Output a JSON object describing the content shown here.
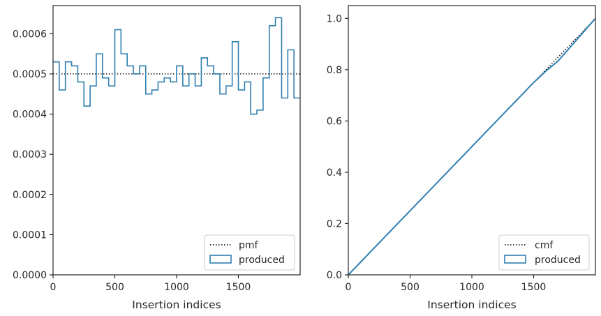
{
  "chart_data": [
    {
      "type": "step",
      "xlabel": "Insertion indices",
      "ylabel": "",
      "xlim": [
        0,
        2000
      ],
      "ylim": [
        0,
        0.00067
      ],
      "xticks": [
        0,
        500,
        1000,
        1500
      ],
      "xtick_labels": [
        "0",
        "500",
        "1000",
        "1500"
      ],
      "yticks": [
        0,
        0.0001,
        0.0002,
        0.0003,
        0.0004,
        0.0005,
        0.0006
      ],
      "ytick_labels": [
        "0.0000",
        "0.0001",
        "0.0002",
        "0.0003",
        "0.0004",
        "0.0005",
        "0.0006"
      ],
      "grid": false,
      "legend_position": "lower-right",
      "reference_line": {
        "name": "pmf",
        "style": "dotted",
        "color": "#000000",
        "value": 0.0005
      },
      "series": [
        {
          "name": "produced",
          "color": "#2f7fb0",
          "bin_width": 50,
          "values": [
            0.00053,
            0.00046,
            0.00053,
            0.00052,
            0.00048,
            0.00042,
            0.00047,
            0.00055,
            0.00049,
            0.00047,
            0.00061,
            0.00055,
            0.00052,
            0.0005,
            0.00052,
            0.00045,
            0.00046,
            0.00048,
            0.00049,
            0.00048,
            0.00052,
            0.00047,
            0.0005,
            0.00047,
            0.00054,
            0.00052,
            0.0005,
            0.00045,
            0.00047,
            0.00058,
            0.00046,
            0.00048,
            0.0004,
            0.00041,
            0.00049,
            0.00062,
            0.00064,
            0.00044,
            0.00056,
            0.00044
          ]
        }
      ]
    },
    {
      "type": "line",
      "xlabel": "Insertion indices",
      "ylabel": "",
      "xlim": [
        0,
        2000
      ],
      "ylim": [
        0,
        1.05
      ],
      "xticks": [
        0,
        500,
        1000,
        1500
      ],
      "xtick_labels": [
        "0",
        "500",
        "1000",
        "1500"
      ],
      "yticks": [
        0,
        0.2,
        0.4,
        0.6,
        0.8,
        1.0
      ],
      "ytick_labels": [
        "0.0",
        "0.2",
        "0.4",
        "0.6",
        "0.8",
        "1.0"
      ],
      "grid": false,
      "legend_position": "lower-right",
      "reference_line": {
        "name": "cmf",
        "style": "dotted",
        "color": "#000000",
        "x": [
          0,
          2000
        ],
        "y": [
          0,
          1
        ]
      },
      "series": [
        {
          "name": "produced",
          "color": "#2f7fb0",
          "x": [
            0,
            100,
            200,
            300,
            400,
            500,
            600,
            700,
            800,
            900,
            1000,
            1100,
            1200,
            1300,
            1400,
            1500,
            1600,
            1700,
            1800,
            1900,
            2000
          ],
          "y": [
            0,
            0.05,
            0.1,
            0.15,
            0.2,
            0.25,
            0.3,
            0.35,
            0.4,
            0.45,
            0.5,
            0.55,
            0.6,
            0.65,
            0.7,
            0.75,
            0.795,
            0.835,
            0.89,
            0.945,
            1.0
          ]
        }
      ]
    }
  ],
  "legends": [
    {
      "ref_label": "pmf",
      "series_label": "produced"
    },
    {
      "ref_label": "cmf",
      "series_label": "produced"
    }
  ]
}
